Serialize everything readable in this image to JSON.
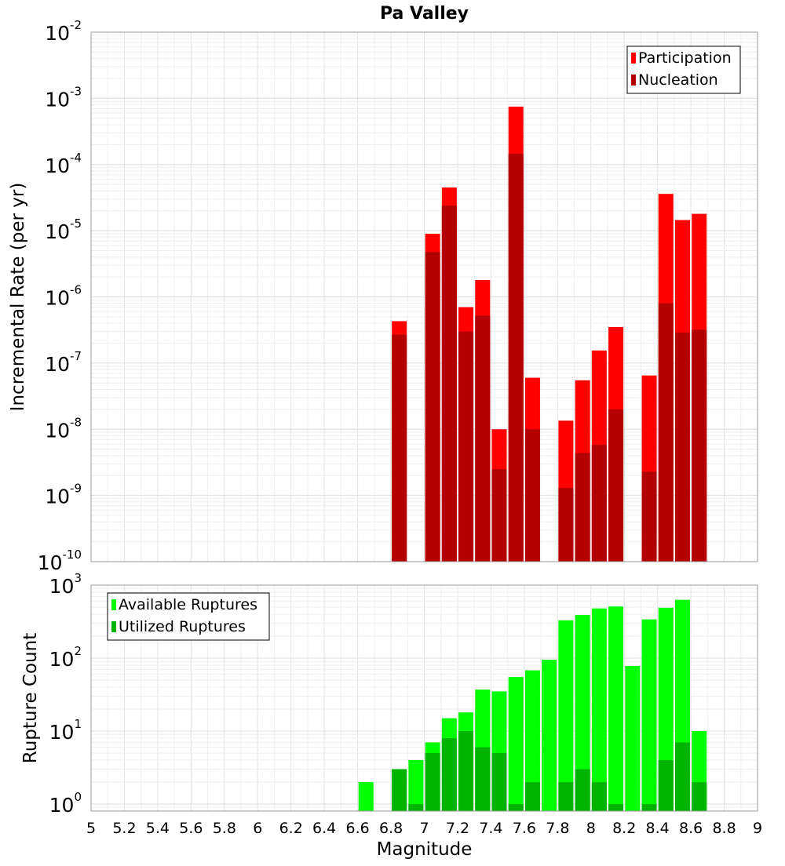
{
  "chart_data": [
    {
      "type": "bar",
      "title": "Pa Valley",
      "xlabel": "",
      "ylabel": "Incremental Rate (per yr)",
      "yscale": "log",
      "ylim": [
        1e-10,
        0.01
      ],
      "xlim": [
        5,
        9
      ],
      "grid": true,
      "legend_position": "top-right",
      "x": [
        6.85,
        7.05,
        7.15,
        7.25,
        7.35,
        7.45,
        7.55,
        7.65,
        7.85,
        7.95,
        8.05,
        8.15,
        8.35,
        8.45,
        8.55,
        8.65
      ],
      "series": [
        {
          "name": "Participation",
          "color": "#ff0000",
          "values": [
            4.3e-07,
            9e-06,
            4.5e-05,
            7e-07,
            1.8e-06,
            1e-08,
            0.00075,
            6e-08,
            1.35e-08,
            5.5e-08,
            1.55e-07,
            3.5e-07,
            6.5e-08,
            3.6e-05,
            1.45e-05,
            1.8e-05
          ]
        },
        {
          "name": "Nucleation",
          "color": "#b30000",
          "values": [
            2.7e-07,
            4.8e-06,
            2.4e-05,
            3e-07,
            5.2e-07,
            2.5e-09,
            0.000145,
            1e-08,
            1.3e-09,
            4.4e-09,
            5.8e-09,
            2e-08,
            2.3e-09,
            8e-07,
            2.9e-07,
            3.2e-07
          ]
        }
      ]
    },
    {
      "type": "bar",
      "title": "",
      "xlabel": "Magnitude",
      "ylabel": "Rupture Count",
      "yscale": "log",
      "ylim": [
        0.8,
        1000
      ],
      "xlim": [
        5,
        9
      ],
      "grid": true,
      "legend_position": "top-left",
      "x_ticks": [
        "5",
        "5.2",
        "5.4",
        "5.6",
        "5.8",
        "6",
        "6.2",
        "6.4",
        "6.6",
        "6.8",
        "7",
        "7.2",
        "7.4",
        "7.6",
        "7.8",
        "8",
        "8.2",
        "8.4",
        "8.6",
        "8.8",
        "9"
      ],
      "x": [
        6.65,
        6.85,
        6.95,
        7.05,
        7.15,
        7.25,
        7.35,
        7.45,
        7.55,
        7.65,
        7.75,
        7.85,
        7.95,
        8.05,
        8.15,
        8.25,
        8.35,
        8.45,
        8.55,
        8.65
      ],
      "series": [
        {
          "name": "Available Ruptures",
          "color": "#00ff00",
          "values": [
            2,
            3,
            4,
            7,
            15,
            18,
            37,
            35,
            55,
            68,
            95,
            330,
            390,
            480,
            510,
            78,
            340,
            490,
            630,
            10
          ]
        },
        {
          "name": "Utilized Ruptures",
          "color": "#00b300",
          "values": [
            0,
            3,
            1,
            5,
            8,
            10,
            6,
            5,
            1,
            2,
            0,
            2,
            3,
            2,
            1,
            0,
            1,
            4,
            7,
            2
          ]
        }
      ]
    }
  ]
}
